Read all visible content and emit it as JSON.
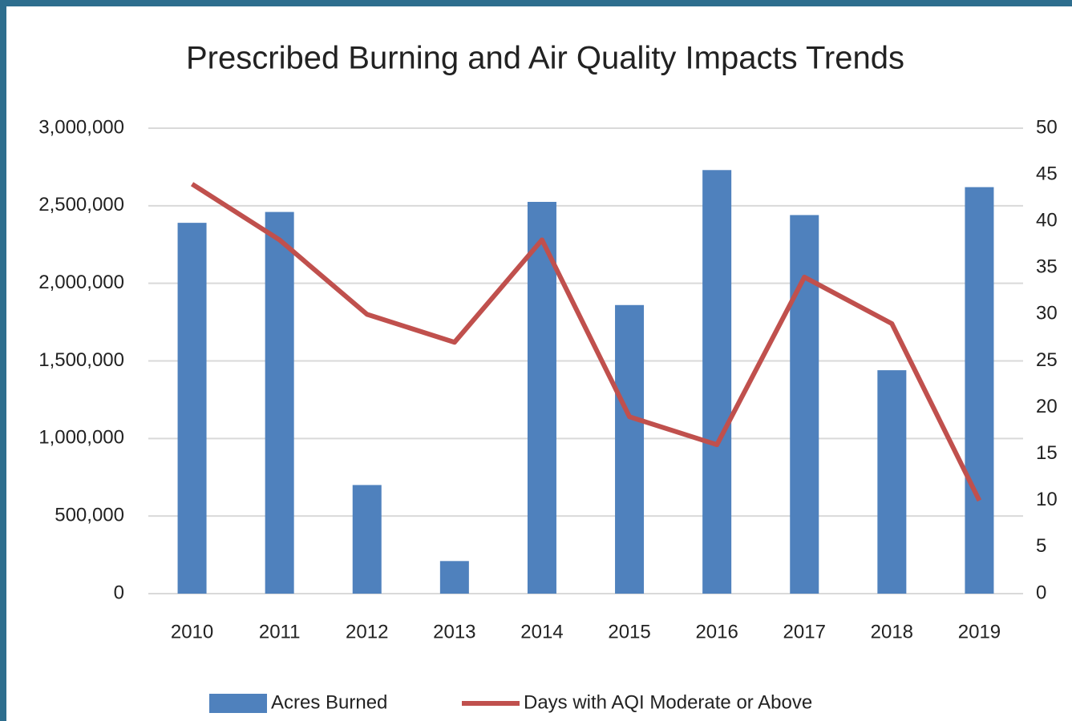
{
  "chart_data": {
    "type": "bar",
    "title": "Prescribed Burning and Air Quality Impacts Trends",
    "categories": [
      "2010",
      "2011",
      "2012",
      "2013",
      "2014",
      "2015",
      "2016",
      "2017",
      "2018",
      "2019"
    ],
    "series": [
      {
        "name": "Acres Burned",
        "type": "bar",
        "color": "#4f81bd",
        "values": [
          2390000,
          2460000,
          700000,
          210000,
          2525000,
          1860000,
          2730000,
          2440000,
          1440000,
          2620000
        ]
      },
      {
        "name": "Days with AQI Moderate or Above",
        "type": "line",
        "axis": "y2",
        "color": "#c0504d",
        "values": [
          44,
          38,
          30,
          27,
          38,
          19,
          16,
          34,
          29,
          10
        ]
      }
    ],
    "ylim": [
      0,
      3000000
    ],
    "yticks": [
      0,
      {
        "value": 500000,
        "label": "500,000"
      },
      {
        "value": 1000000,
        "label": "1,000,000"
      },
      {
        "value": 1500000,
        "label": "1,500,000"
      },
      {
        "value": 2000000,
        "label": "2,000,000"
      },
      {
        "value": 2500000,
        "label": "2,500,000"
      },
      {
        "value": 3000000,
        "label": "3,000,000"
      }
    ],
    "y2lim": [
      0,
      50
    ],
    "y2ticks": [
      0,
      5,
      10,
      15,
      20,
      25,
      30,
      35,
      40,
      45,
      50
    ],
    "grid": true,
    "legend": "bottom"
  }
}
